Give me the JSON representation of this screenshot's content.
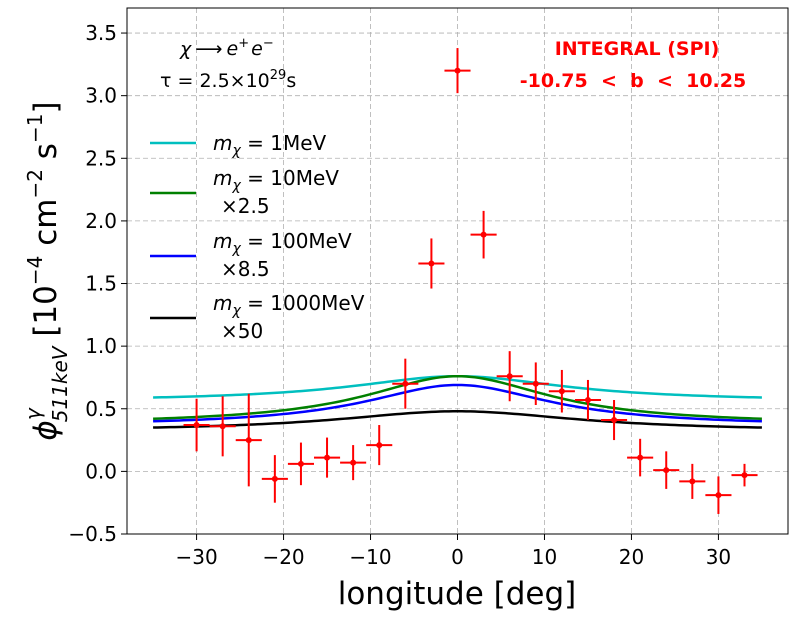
{
  "chart_data": {
    "type": "scatter",
    "title": "",
    "xlabel": "longitude [deg]",
    "ylabel": {
      "base": "ϕ",
      "sup": "γ",
      "sub": "511keV",
      "units_open": " [10",
      "units_exp1": "−4",
      "units_mid": " cm",
      "units_exp2": "−2",
      "units_mid2": " s",
      "units_exp3": "−1",
      "units_close": "]"
    },
    "xlim": [
      -38,
      38
    ],
    "ylim": [
      -0.5,
      3.7
    ],
    "xticks": [
      -30,
      -20,
      -10,
      0,
      10,
      20,
      30
    ],
    "xtick_labels": [
      "−30",
      "−20",
      "−10",
      "0",
      "10",
      "20",
      "30"
    ],
    "yticks": [
      -0.5,
      0.0,
      0.5,
      1.0,
      1.5,
      2.0,
      2.5,
      3.0,
      3.5
    ],
    "ytick_labels": [
      "−0.5",
      "0.0",
      "0.5",
      "1.0",
      "1.5",
      "2.0",
      "2.5",
      "3.0",
      "3.5"
    ],
    "grid": true,
    "annotations": {
      "process": {
        "chi": "χ",
        "arrow": "⟶",
        "e": "e",
        "plus": "+",
        "minus": "−"
      },
      "lifetime": {
        "tau": "τ = 2.5×10",
        "exp": "29",
        "unit": "s"
      },
      "instrument": "INTEGRAL (SPI)",
      "latitude": "-10.75  <  b  <  10.25"
    },
    "legend": {
      "placement": "center-left",
      "entries": [
        {
          "series": 0,
          "symbol": "m",
          "sub": "χ",
          "eq": " = 1MeV",
          "scale": ""
        },
        {
          "series": 1,
          "symbol": "m",
          "sub": "χ",
          "eq": " = 10MeV",
          "scale": "×2.5"
        },
        {
          "series": 2,
          "symbol": "m",
          "sub": "χ",
          "eq": " = 100MeV",
          "scale": "×8.5"
        },
        {
          "series": 3,
          "symbol": "m",
          "sub": "χ",
          "eq": " = 1000MeV",
          "scale": "×50"
        }
      ]
    },
    "series": [
      {
        "name": "m_chi = 1MeV",
        "color": "#00bfbf",
        "peak": 0.76,
        "wing": 0.59,
        "width": 15
      },
      {
        "name": "m_chi = 10MeV x2.5",
        "color": "#008000",
        "peak": 0.76,
        "wing": 0.42,
        "width": 13
      },
      {
        "name": "m_chi = 100MeV x8.5",
        "color": "#0000ff",
        "peak": 0.69,
        "wing": 0.4,
        "width": 13
      },
      {
        "name": "m_chi = 1000MeV x50",
        "color": "#000000",
        "peak": 0.48,
        "wing": 0.35,
        "width": 17
      }
    ],
    "model_x_range": [
      -35,
      35
    ],
    "observations": {
      "name": "INTEGRAL (SPI)",
      "color": "#ff0000",
      "x_err": 1.5,
      "points": [
        {
          "x": -30,
          "y": 0.37,
          "yerr": 0.21
        },
        {
          "x": -27,
          "y": 0.36,
          "yerr": 0.24
        },
        {
          "x": -24,
          "y": 0.25,
          "yerr": 0.37
        },
        {
          "x": -21,
          "y": -0.06,
          "yerr": 0.19
        },
        {
          "x": -18,
          "y": 0.06,
          "yerr": 0.17
        },
        {
          "x": -15,
          "y": 0.11,
          "yerr": 0.16
        },
        {
          "x": -12,
          "y": 0.07,
          "yerr": 0.14
        },
        {
          "x": -9,
          "y": 0.21,
          "yerr": 0.16
        },
        {
          "x": -6,
          "y": 0.7,
          "yerr": 0.2
        },
        {
          "x": -3,
          "y": 1.66,
          "yerr": 0.2
        },
        {
          "x": 0,
          "y": 3.2,
          "yerr": 0.18
        },
        {
          "x": 3,
          "y": 1.89,
          "yerr": 0.19
        },
        {
          "x": 6,
          "y": 0.76,
          "yerr": 0.2
        },
        {
          "x": 9,
          "y": 0.7,
          "yerr": 0.17
        },
        {
          "x": 12,
          "y": 0.64,
          "yerr": 0.17
        },
        {
          "x": 15,
          "y": 0.57,
          "yerr": 0.16
        },
        {
          "x": 18,
          "y": 0.41,
          "yerr": 0.16
        },
        {
          "x": 21,
          "y": 0.11,
          "yerr": 0.15
        },
        {
          "x": 24,
          "y": 0.01,
          "yerr": 0.15
        },
        {
          "x": 27,
          "y": -0.08,
          "yerr": 0.14
        },
        {
          "x": 30,
          "y": -0.19,
          "yerr": 0.15
        },
        {
          "x": 33,
          "y": -0.03,
          "yerr": 0.09
        }
      ]
    }
  }
}
